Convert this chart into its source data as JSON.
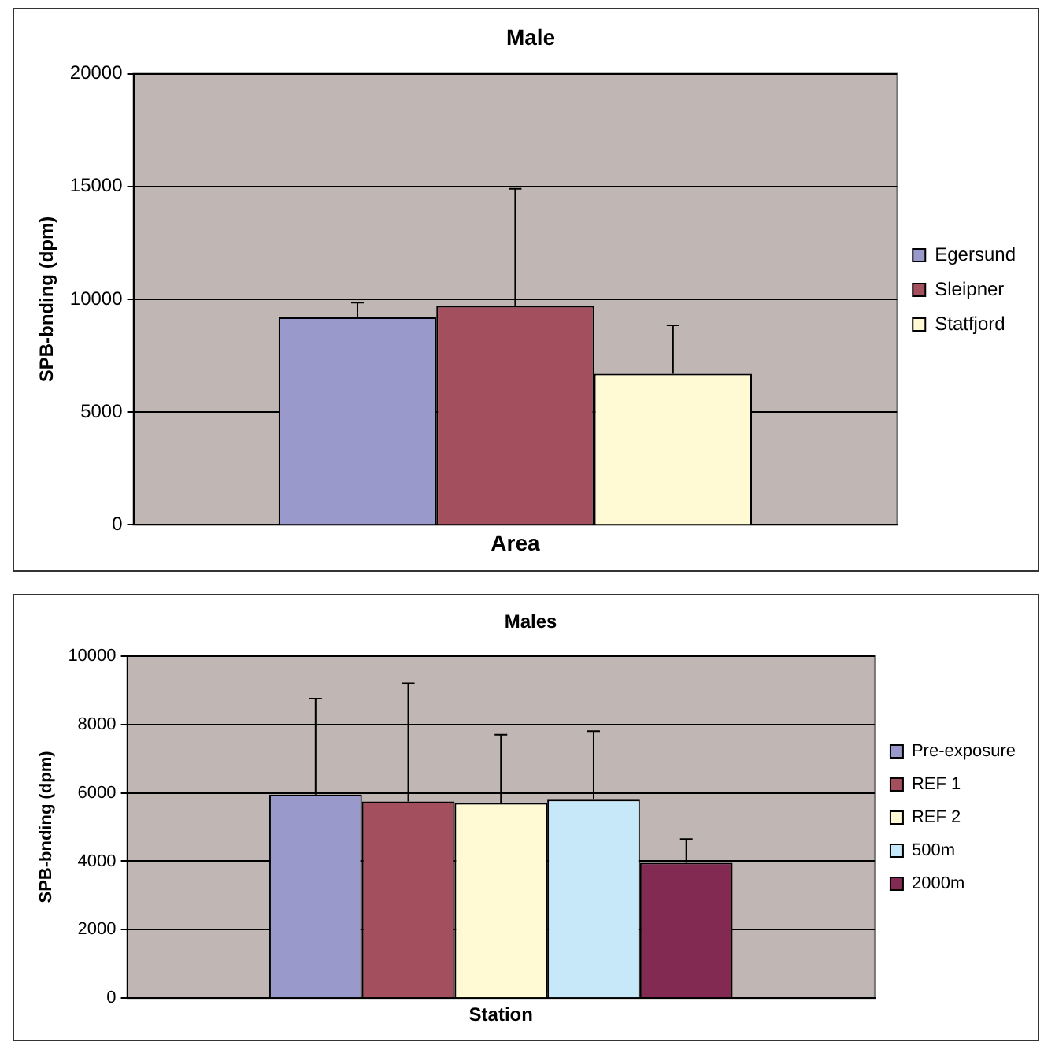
{
  "chart_data": [
    {
      "type": "bar",
      "title": "Male",
      "xlabel": "Area",
      "ylabel": "SPB-bnding (dpm)",
      "categories": [
        null
      ],
      "series": [
        {
          "name": "Egersund",
          "color": "#9999cc",
          "values": [
            9200
          ],
          "errors": [
            [
              9200,
              9850
            ]
          ]
        },
        {
          "name": "Sleipner",
          "color": "#a44f5e",
          "values": [
            9700
          ],
          "errors": [
            [
              9700,
              14900
            ]
          ]
        },
        {
          "name": "Statfjord",
          "color": "#fff9d4",
          "values": [
            6700
          ],
          "errors": [
            [
              6700,
              8850
            ]
          ]
        }
      ],
      "ylim": [
        0,
        20000
      ],
      "yticks": [
        0,
        5000,
        10000,
        15000,
        20000
      ],
      "grid": "y",
      "legend": "right",
      "tick_labels": "y"
    },
    {
      "type": "bar",
      "title": "Males",
      "xlabel": "Station",
      "ylabel": "SPB-bnding (dpm)",
      "categories": [
        null
      ],
      "series": [
        {
          "name": "Pre-exposure",
          "color": "#9999cc",
          "values": [
            5950
          ],
          "errors": [
            [
              5950,
              8750
            ]
          ]
        },
        {
          "name": "REF 1",
          "color": "#a44f5e",
          "values": [
            5750
          ],
          "errors": [
            [
              5750,
              9200
            ]
          ]
        },
        {
          "name": "REF 2",
          "color": "#fff9d4",
          "values": [
            5700
          ],
          "errors": [
            [
              5700,
              7700
            ]
          ]
        },
        {
          "name": "500m",
          "color": "#c7e8f8",
          "values": [
            5800
          ],
          "errors": [
            [
              5800,
              7800
            ]
          ]
        },
        {
          "name": "2000m",
          "color": "#822a52",
          "values": [
            3950
          ],
          "errors": [
            [
              3950,
              4650
            ]
          ]
        }
      ],
      "ylim": [
        0,
        10000
      ],
      "yticks": [
        0,
        2000,
        4000,
        6000,
        8000,
        10000
      ],
      "grid": "y",
      "legend": "right",
      "tick_labels": "y"
    }
  ]
}
